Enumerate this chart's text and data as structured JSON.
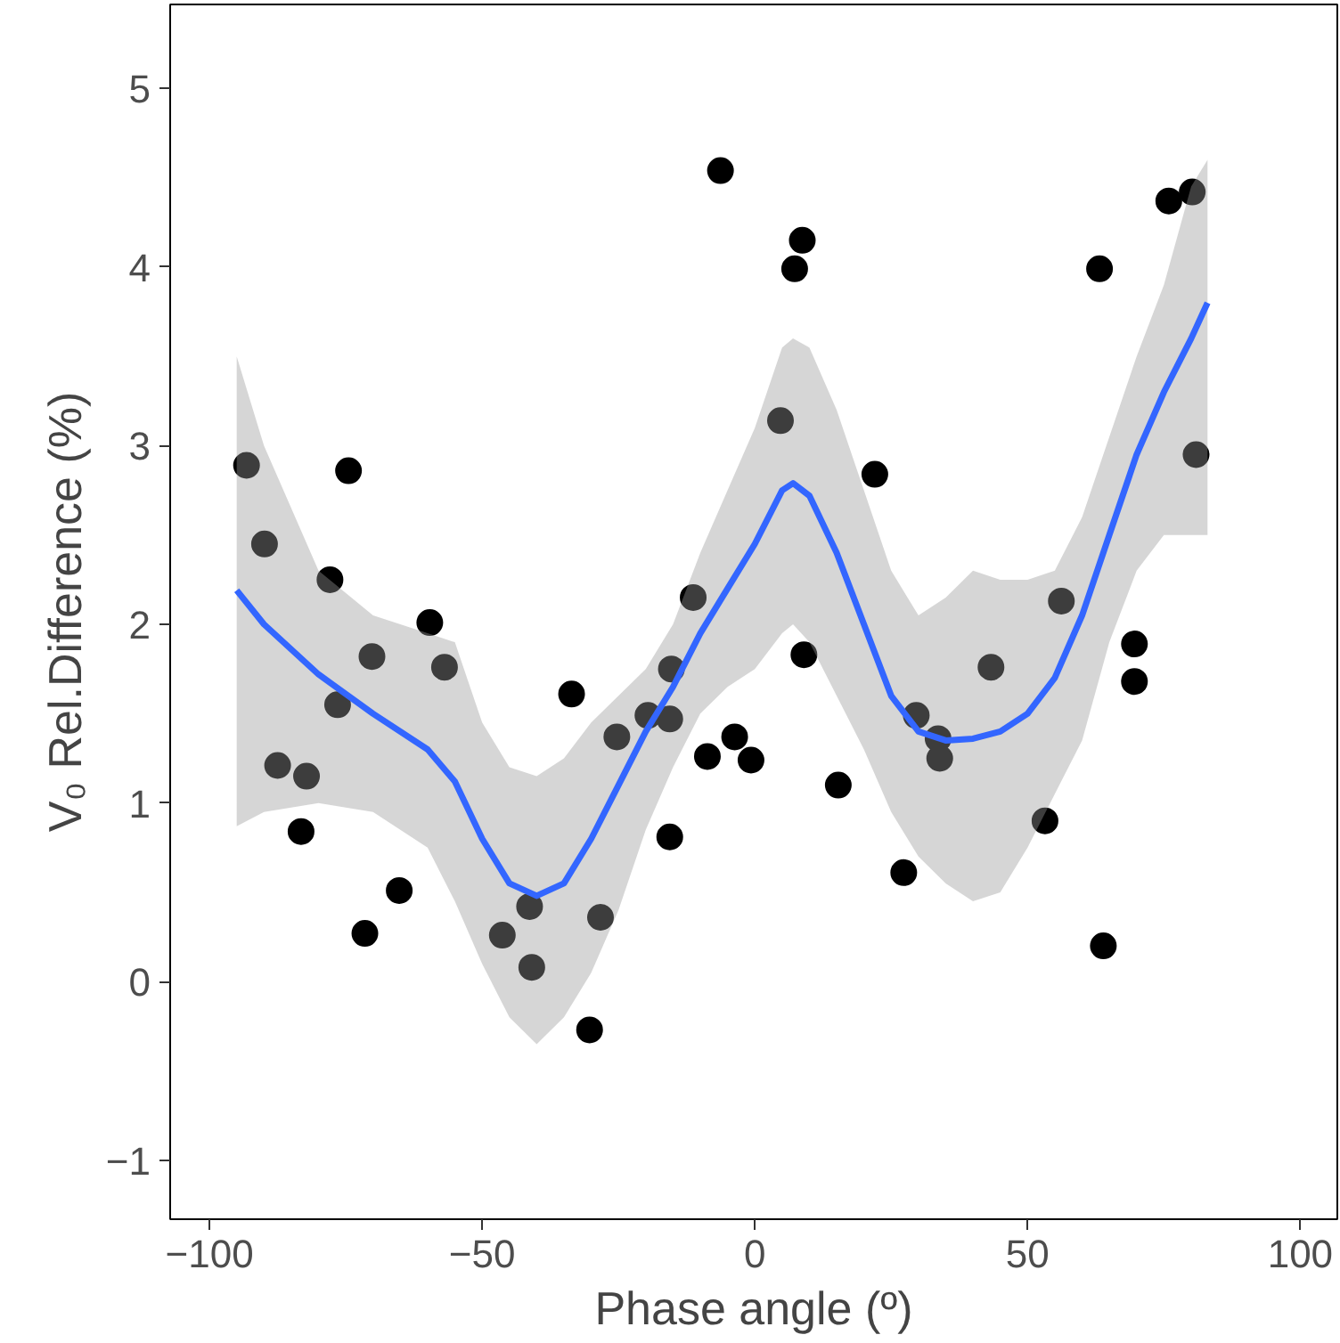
{
  "chart_data": {
    "type": "scatter",
    "xlabel": "Phase angle (º)",
    "ylabel": "V₀ Rel.Difference (%)",
    "xlim": [
      -107.2,
      106.8
    ],
    "ylim": [
      -1.33,
      5.47
    ],
    "xticks": [
      {
        "value": -100,
        "label": "−100"
      },
      {
        "value": -50,
        "label": "−50"
      },
      0,
      50,
      100
    ],
    "yticks": [
      {
        "value": -1,
        "label": "−1"
      },
      0,
      1,
      2,
      3,
      4,
      5
    ],
    "grid": false,
    "series": [
      {
        "marker": "circle",
        "color": "#000000",
        "x": [
          -93.2,
          -89.9,
          -87.5,
          -82.2,
          -83.2,
          -77.9,
          -76.5,
          -74.5,
          -71.5,
          -70.2,
          -65.2,
          -59.6,
          -56.9,
          -46.3,
          -41.3,
          -40.9,
          -33.6,
          -30.3,
          -28.3,
          -25.3,
          -19.6,
          -15.6,
          -15.3,
          -15.6,
          -11.3,
          -8.7,
          -6.3,
          -3.7,
          -0.7,
          4.7,
          7.3,
          8.7,
          9.0,
          15.3,
          22.0,
          27.3,
          29.6,
          33.6,
          33.9,
          43.3,
          53.2,
          56.2,
          63.2,
          63.9,
          69.6,
          69.6,
          75.9,
          80.2,
          80.9
        ],
        "values": [
          2.89,
          2.45,
          1.21,
          1.15,
          0.84,
          2.25,
          1.55,
          2.86,
          0.27,
          1.82,
          0.51,
          2.01,
          1.76,
          0.26,
          0.42,
          0.08,
          1.61,
          -0.27,
          0.36,
          1.37,
          1.49,
          1.47,
          1.75,
          0.81,
          2.15,
          1.26,
          4.54,
          1.37,
          1.24,
          3.14,
          3.99,
          4.15,
          1.83,
          1.1,
          2.84,
          0.61,
          1.49,
          1.36,
          1.25,
          1.76,
          0.9,
          2.13,
          3.99,
          0.2,
          1.89,
          1.68,
          4.37,
          4.42,
          2.95
        ]
      },
      {
        "type": "line",
        "marker": "none",
        "color": "#3366ff",
        "x": [
          -95,
          -90,
          -80,
          -70,
          -60,
          -55,
          -50,
          -45,
          -40,
          -35,
          -30,
          -25,
          -20,
          -15,
          -10,
          -5,
          0,
          5,
          7,
          10,
          15,
          20,
          25,
          30,
          35,
          40,
          45,
          50,
          55,
          60,
          65,
          70,
          75,
          80,
          83
        ],
        "values": [
          2.19,
          2.0,
          1.72,
          1.5,
          1.3,
          1.12,
          0.8,
          0.55,
          0.48,
          0.55,
          0.8,
          1.1,
          1.4,
          1.65,
          1.95,
          2.2,
          2.45,
          2.75,
          2.79,
          2.72,
          2.4,
          2.0,
          1.6,
          1.4,
          1.35,
          1.36,
          1.4,
          1.5,
          1.7,
          2.05,
          2.5,
          2.95,
          3.3,
          3.6,
          3.8
        ],
        "lower": [
          0.87,
          0.95,
          1.0,
          0.95,
          0.75,
          0.45,
          0.1,
          -0.2,
          -0.35,
          -0.2,
          0.05,
          0.4,
          0.85,
          1.2,
          1.5,
          1.65,
          1.75,
          1.95,
          2.0,
          1.9,
          1.6,
          1.3,
          0.95,
          0.7,
          0.55,
          0.45,
          0.5,
          0.75,
          1.05,
          1.35,
          1.9,
          2.3,
          2.5,
          2.5,
          2.5
        ],
        "upper": [
          3.5,
          3.0,
          2.3,
          2.05,
          1.95,
          1.9,
          1.45,
          1.2,
          1.15,
          1.25,
          1.45,
          1.6,
          1.75,
          2.0,
          2.4,
          2.75,
          3.1,
          3.55,
          3.6,
          3.55,
          3.2,
          2.75,
          2.3,
          2.05,
          2.15,
          2.3,
          2.25,
          2.25,
          2.3,
          2.6,
          3.05,
          3.5,
          3.9,
          4.45,
          4.6
        ]
      }
    ]
  }
}
